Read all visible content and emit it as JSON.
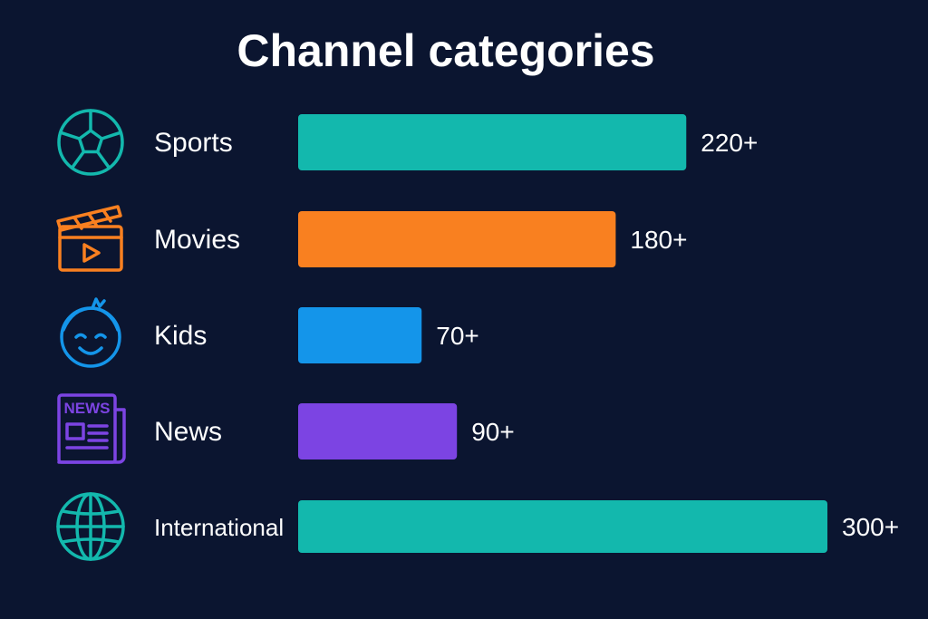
{
  "chart_data": {
    "type": "bar",
    "orientation": "horizontal",
    "title": "Channel categories",
    "categories": [
      "Sports",
      "Movies",
      "Kids",
      "News",
      "International"
    ],
    "values": [
      220,
      180,
      70,
      90,
      300
    ],
    "value_labels": [
      "220+",
      "180+",
      "70+",
      "90+",
      "300+"
    ],
    "bar_colors": [
      "#13b8ad",
      "#f98020",
      "#1495ea",
      "#7c44e3",
      "#13b8ad"
    ],
    "icons": [
      "soccer-ball-icon",
      "clapperboard-icon",
      "kid-face-icon",
      "newspaper-icon",
      "globe-icon"
    ],
    "icon_colors": [
      "#13b8ad",
      "#f98020",
      "#1495ea",
      "#7c44e3",
      "#13b8ad"
    ],
    "news_icon_text": "NEWS",
    "xlim": [
      0,
      300
    ],
    "grid": false,
    "legend": "none"
  },
  "colors": {
    "background": "#0b1530",
    "text": "#ffffff"
  }
}
